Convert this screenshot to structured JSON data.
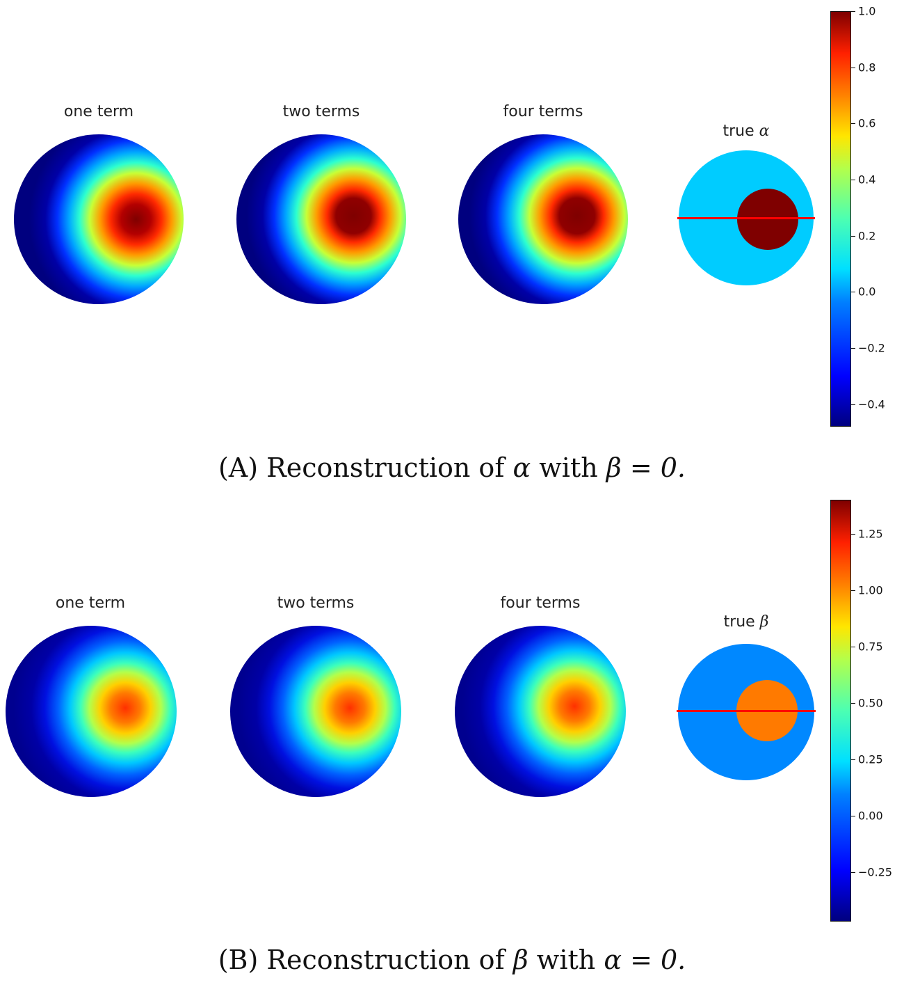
{
  "chart_data": [
    {
      "type": "heatmap",
      "panel_label": "(A)",
      "caption_text": "Reconstruction of",
      "caption_symbol": "α",
      "caption_mid": "with",
      "caption_condition": "β = 0.",
      "subplots": [
        {
          "title": "one term"
        },
        {
          "title": "two terms"
        },
        {
          "title": "four terms"
        },
        {
          "title_text": "true",
          "title_symbol": "α"
        }
      ],
      "colorbar": {
        "min": -0.48,
        "max": 1.0,
        "ticks": [
          -0.4,
          -0.2,
          0.0,
          0.2,
          0.4,
          0.6,
          0.8,
          1.0
        ],
        "tick_labels": [
          "−0.4",
          "−0.2",
          "0.0",
          "0.2",
          "0.4",
          "0.6",
          "0.8",
          "1.0"
        ]
      },
      "true_field": {
        "background_value": 0.0,
        "inclusion_value": 1.0
      },
      "reconstruction_peaks": [
        0.95,
        1.0,
        1.0
      ]
    },
    {
      "type": "heatmap",
      "panel_label": "(B)",
      "caption_text": "Reconstruction of",
      "caption_symbol": "β",
      "caption_mid": "with",
      "caption_condition": "α = 0.",
      "subplots": [
        {
          "title": "one term"
        },
        {
          "title": "two terms"
        },
        {
          "title": "four terms"
        },
        {
          "title_text": "true",
          "title_symbol": "β"
        }
      ],
      "colorbar": {
        "min": -0.47,
        "max": 1.4,
        "ticks": [
          -0.25,
          0.0,
          0.25,
          0.5,
          0.75,
          1.0,
          1.25
        ],
        "tick_labels": [
          "−0.25",
          "0.00",
          "0.25",
          "0.50",
          "0.75",
          "1.00",
          "1.25"
        ]
      },
      "true_field": {
        "background_value": 0.0,
        "inclusion_value": 1.0
      },
      "reconstruction_peaks": [
        1.05,
        1.05,
        1.05
      ]
    }
  ],
  "colors": {
    "line": "#ff0000"
  }
}
